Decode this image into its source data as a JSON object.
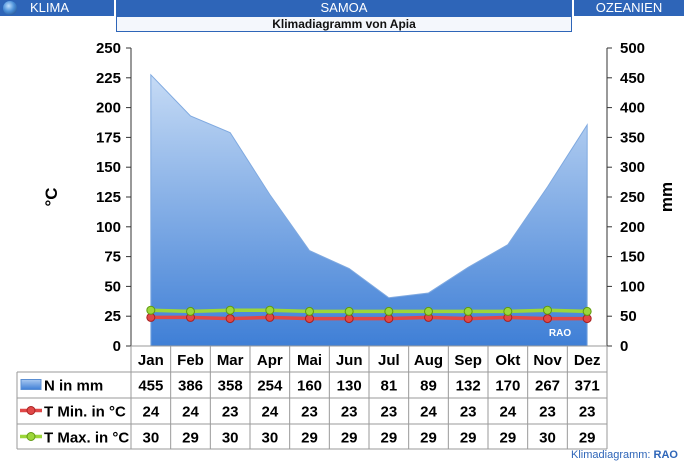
{
  "header": {
    "left": "KLIMA",
    "center": "SAMOA",
    "right": "OZEANIEN",
    "subtitle": "Klimadiagramm von Apia"
  },
  "footer": {
    "label": "Klimadiagramm:",
    "brand": "RAO"
  },
  "watermark": "RAO",
  "colors": {
    "header_bg": "#2e65b8",
    "precip_fill_top": "#c6dbf5",
    "precip_fill_bottom": "#3f7fd6",
    "tmin": "#e04848",
    "tmax": "#9cd63a"
  },
  "chart_data": {
    "type": "area",
    "categories": [
      "Jan",
      "Feb",
      "Mar",
      "Apr",
      "Mai",
      "Jun",
      "Jul",
      "Aug",
      "Sep",
      "Okt",
      "Nov",
      "Dez"
    ],
    "ylabel_left": "°C",
    "ylabel_right": "mm",
    "ylim_left": [
      0,
      250
    ],
    "ylim_right": [
      0,
      500
    ],
    "yticks_left": [
      0,
      25,
      50,
      75,
      100,
      125,
      150,
      175,
      200,
      225,
      250
    ],
    "yticks_right": [
      0,
      50,
      100,
      150,
      200,
      250,
      300,
      350,
      400,
      450,
      500
    ],
    "grid": false,
    "series": [
      {
        "name": "N in mm",
        "axis": "right",
        "type": "area",
        "values": [
          455,
          386,
          358,
          254,
          160,
          130,
          81,
          89,
          132,
          170,
          267,
          371
        ]
      },
      {
        "name": "T Min. in °C",
        "axis": "left",
        "type": "line",
        "values": [
          24,
          24,
          23,
          24,
          23,
          23,
          23,
          24,
          23,
          24,
          23,
          23
        ]
      },
      {
        "name": "T Max. in °C",
        "axis": "left",
        "type": "line",
        "values": [
          30,
          29,
          30,
          30,
          29,
          29,
          29,
          29,
          29,
          29,
          30,
          29
        ]
      }
    ]
  }
}
